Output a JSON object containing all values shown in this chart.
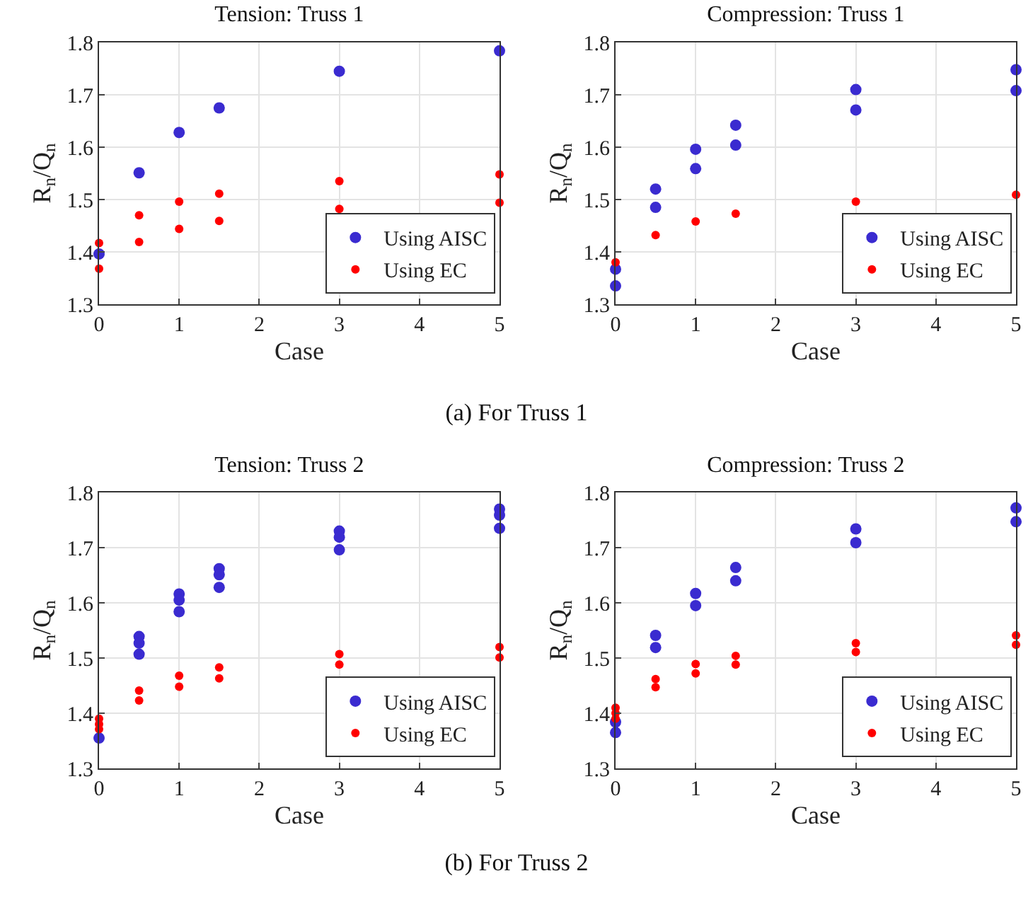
{
  "chart_data": [
    {
      "type": "scatter",
      "title": "Tension: Truss 1",
      "xlabel": "Case",
      "ylabel": "R$_{n}$/Q$_{n}$",
      "xlim": [
        0,
        5
      ],
      "xticks": [
        0,
        1,
        2,
        3,
        4,
        5
      ],
      "ylim": [
        1.3,
        1.8
      ],
      "yticks": [
        1.3,
        1.4,
        1.5,
        1.6,
        1.7,
        1.8
      ],
      "grid": true,
      "legend": "bottom right",
      "marker": "circle",
      "annotations": [
        "(a)  For Truss 1"
      ],
      "series": [
        {
          "name": "Using AISC",
          "color": "#3a2bd0",
          "x": [
            0,
            0.5,
            1,
            1.5,
            3,
            5
          ],
          "values": [
            1.396,
            1.551,
            1.628,
            1.675,
            1.745,
            1.784
          ]
        },
        {
          "name": "Using EC",
          "color": "#ff0000",
          "x": [
            0,
            0,
            0.5,
            0.5,
            1,
            1,
            1.5,
            1.5,
            3,
            3,
            5,
            5
          ],
          "values": [
            1.417,
            1.368,
            1.47,
            1.419,
            1.496,
            1.444,
            1.511,
            1.459,
            1.535,
            1.482,
            1.548,
            1.494
          ]
        }
      ]
    },
    {
      "type": "scatter",
      "title": "Compression: Truss 1",
      "xlabel": "Case",
      "ylabel": "R$_{n}$/Q$_{n}$",
      "xlim": [
        0,
        5
      ],
      "xticks": [
        0,
        1,
        2,
        3,
        4,
        5
      ],
      "ylim": [
        1.3,
        1.8
      ],
      "yticks": [
        1.3,
        1.4,
        1.5,
        1.6,
        1.7,
        1.8
      ],
      "grid": true,
      "legend": "bottom right",
      "marker": "circle",
      "series": [
        {
          "name": "Using AISC",
          "color": "#3a2bd0",
          "x": [
            0,
            0,
            0.5,
            0.5,
            1,
            1,
            1.5,
            1.5,
            3,
            3,
            5,
            5
          ],
          "values": [
            1.367,
            1.335,
            1.52,
            1.485,
            1.596,
            1.559,
            1.642,
            1.604,
            1.71,
            1.671,
            1.748,
            1.708
          ]
        },
        {
          "name": "Using EC",
          "color": "#ff0000",
          "x": [
            0,
            0.5,
            1,
            1.5,
            3,
            5
          ],
          "values": [
            1.38,
            1.432,
            1.458,
            1.473,
            1.496,
            1.509
          ]
        }
      ]
    },
    {
      "type": "scatter",
      "title": "Tension: Truss 2",
      "xlabel": "Case",
      "ylabel": "R$_{n}$/Q$_{n}$",
      "xlim": [
        0,
        5
      ],
      "xticks": [
        0,
        1,
        2,
        3,
        4,
        5
      ],
      "ylim": [
        1.3,
        1.8
      ],
      "yticks": [
        1.3,
        1.4,
        1.5,
        1.6,
        1.7,
        1.8
      ],
      "grid": true,
      "legend": "bottom right",
      "marker": "circle",
      "annotations": [
        "(b)  For Truss 2"
      ],
      "series": [
        {
          "name": "Using AISC",
          "color": "#3a2bd0",
          "x": [
            0,
            0.5,
            0.5,
            0.5,
            1,
            1,
            1,
            1.5,
            1.5,
            1.5,
            3,
            3,
            3,
            5,
            5,
            5
          ],
          "values": [
            1.355,
            1.539,
            1.527,
            1.507,
            1.616,
            1.605,
            1.584,
            1.662,
            1.651,
            1.628,
            1.73,
            1.719,
            1.696,
            1.77,
            1.759,
            1.735
          ]
        },
        {
          "name": "Using EC",
          "color": "#ff0000",
          "x": [
            0,
            0,
            0,
            0.5,
            0.5,
            1,
            1,
            1.5,
            1.5,
            3,
            3,
            5,
            5
          ],
          "values": [
            1.39,
            1.38,
            1.371,
            1.441,
            1.423,
            1.468,
            1.448,
            1.483,
            1.463,
            1.507,
            1.488,
            1.52,
            1.501
          ]
        }
      ]
    },
    {
      "type": "scatter",
      "title": "Compression: Truss 2",
      "xlabel": "Case",
      "ylabel": "R$_{n}$/Q$_{n}$",
      "xlim": [
        0,
        5
      ],
      "xticks": [
        0,
        1,
        2,
        3,
        4,
        5
      ],
      "ylim": [
        1.3,
        1.8
      ],
      "yticks": [
        1.3,
        1.4,
        1.5,
        1.6,
        1.7,
        1.8
      ],
      "grid": true,
      "legend": "bottom right",
      "marker": "circle",
      "series": [
        {
          "name": "Using AISC",
          "color": "#3a2bd0",
          "x": [
            0,
            0,
            0.5,
            0.5,
            1,
            1,
            1.5,
            1.5,
            3,
            3,
            5,
            5
          ],
          "values": [
            1.384,
            1.365,
            1.541,
            1.519,
            1.617,
            1.595,
            1.664,
            1.64,
            1.734,
            1.709,
            1.772,
            1.747
          ]
        },
        {
          "name": "Using EC",
          "color": "#ff0000",
          "x": [
            0,
            0,
            0,
            0.5,
            0.5,
            1,
            1,
            1.5,
            1.5,
            3,
            3,
            5,
            5
          ],
          "values": [
            1.41,
            1.4,
            1.39,
            1.462,
            1.447,
            1.489,
            1.472,
            1.504,
            1.488,
            1.527,
            1.511,
            1.541,
            1.524
          ]
        }
      ]
    }
  ]
}
